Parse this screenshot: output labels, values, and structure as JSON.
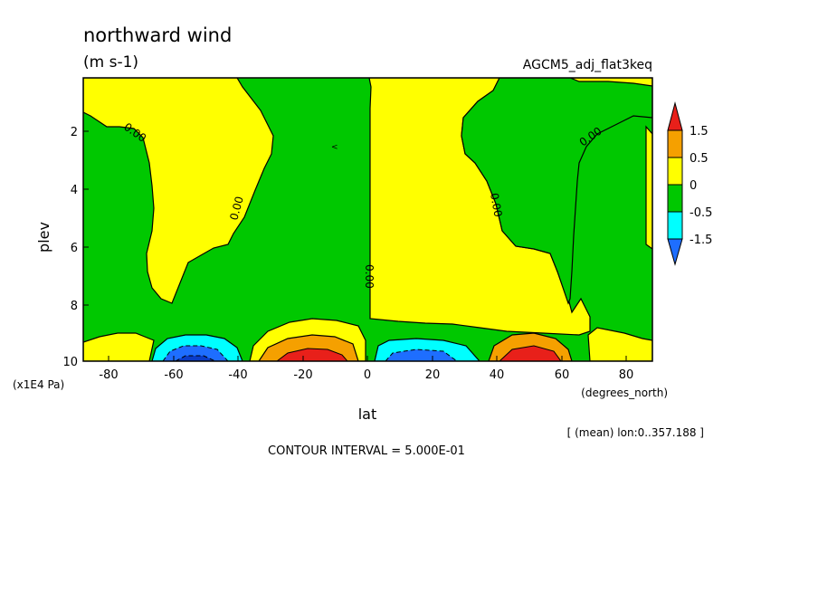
{
  "chart_data": {
    "type": "contour",
    "title": "northward wind",
    "units": "(m s-1)",
    "experiment": "AGCM5_adj_flat3keq",
    "xlabel": "lat",
    "xunits": "(degrees_north)",
    "ylabel": "plev",
    "yunits": "(x1E4 Pa)",
    "xlim": [
      -88,
      88
    ],
    "ylim": [
      0.1,
      10
    ],
    "x_ticks": [
      -80,
      -60,
      -40,
      -20,
      0,
      20,
      40,
      60,
      80
    ],
    "x_tick_labels": [
      "-80",
      "-60",
      "-40",
      "-20",
      "0",
      "20",
      "40",
      "60",
      "80"
    ],
    "y_ticks": [
      2,
      4,
      6,
      8,
      10
    ],
    "y_tick_labels": [
      "2",
      "4",
      "6",
      "8",
      "10"
    ],
    "contour_interval_text": "CONTOUR INTERVAL = 5.000E-01",
    "mean_text": "[ (mean) lon:0..357.188 ]",
    "contour_labels": [
      "0.00",
      "0.00",
      "0.00",
      "0.00",
      "0.00",
      "0.00"
    ],
    "colorbar": {
      "levels": [
        "1.5",
        "0.5",
        "0",
        "-0.5",
        "-1.5"
      ],
      "colors": [
        "#e8201a",
        "#f5a000",
        "#ffff00",
        "#00c800",
        "#00ffff",
        "#1e6eff"
      ]
    },
    "regions": [
      {
        "value": "positive",
        "lat_range": [
          -88,
          -38
        ],
        "plev_range": [
          0.1,
          8.5
        ]
      },
      {
        "value": "negative",
        "lat_range": [
          -45,
          0
        ],
        "plev_range": [
          0.1,
          9
        ]
      },
      {
        "value": "positive",
        "lat_range": [
          0,
          70
        ],
        "plev_range": [
          0.1,
          9.5
        ]
      },
      {
        "value": "negative",
        "lat_range": [
          30,
          88
        ],
        "plev_range": [
          0.1,
          8
        ]
      },
      {
        "value": "min",
        "lat": -55,
        "plev": 10
      },
      {
        "value": "max",
        "lat": -15,
        "plev": 10
      },
      {
        "value": "min",
        "lat": 12,
        "plev": 10
      },
      {
        "value": "max",
        "lat": 52,
        "plev": 10
      }
    ]
  },
  "colors": {
    "red": "#e8201a",
    "orange": "#f5a000",
    "yellow": "#ffff00",
    "green": "#00c800",
    "cyan": "#00ffff",
    "blue": "#1e6eff",
    "darkblue": "#0a3cc8"
  }
}
